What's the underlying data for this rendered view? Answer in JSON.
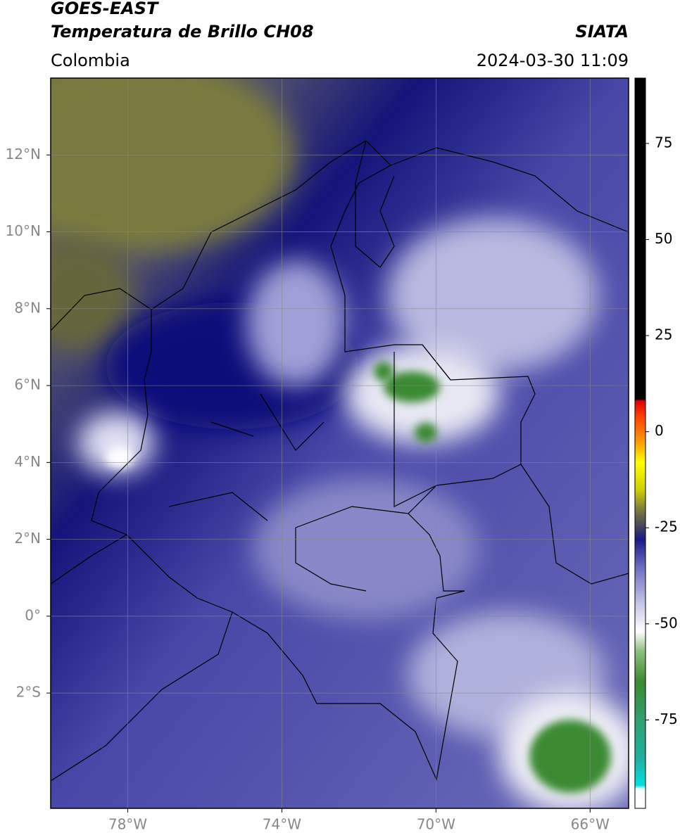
{
  "header": {
    "satellite": "GOES-EAST",
    "product": "Temperatura de Brillo CH08",
    "source": "SIATA",
    "region": "Colombia",
    "datetime": "2024-03-30 11:09"
  },
  "map": {
    "xlim": [
      -80,
      -65
    ],
    "ylim": [
      -5,
      14
    ],
    "grid": true,
    "xticks": [
      {
        "value": -78,
        "label": "78°W"
      },
      {
        "value": -74,
        "label": "74°W"
      },
      {
        "value": -70,
        "label": "70°W"
      },
      {
        "value": -66,
        "label": "66°W"
      }
    ],
    "yticks": [
      {
        "value": 12,
        "label": "12°N"
      },
      {
        "value": 10,
        "label": "10°N"
      },
      {
        "value": 8,
        "label": "8°N"
      },
      {
        "value": 6,
        "label": "6°N"
      },
      {
        "value": 4,
        "label": "4°N"
      },
      {
        "value": 2,
        "label": "2°N"
      },
      {
        "value": 0,
        "label": "0°"
      },
      {
        "value": -2,
        "label": "2°S"
      }
    ]
  },
  "colorbar": {
    "clim": [
      -98,
      92
    ],
    "ticks": [
      75,
      50,
      25,
      0,
      -25,
      -50,
      -75
    ],
    "colormap": [
      {
        "value": -98,
        "color": "#ffffff"
      },
      {
        "value": -93,
        "color": "#ffffff"
      },
      {
        "value": -92,
        "color": "#00e0e0"
      },
      {
        "value": -85,
        "color": "#20b0a0"
      },
      {
        "value": -75,
        "color": "#30a070"
      },
      {
        "value": -65,
        "color": "#3a8a30"
      },
      {
        "value": -57,
        "color": "#90c080"
      },
      {
        "value": -52,
        "color": "#ffffff"
      },
      {
        "value": -45,
        "color": "#c8c8e8"
      },
      {
        "value": -35,
        "color": "#6a6ac0"
      },
      {
        "value": -28,
        "color": "#1a1a8a"
      },
      {
        "value": -25,
        "color": "#404060"
      },
      {
        "value": -20,
        "color": "#808040"
      },
      {
        "value": -15,
        "color": "#d0d000"
      },
      {
        "value": -8,
        "color": "#ffff00"
      },
      {
        "value": -3,
        "color": "#ffa000"
      },
      {
        "value": 4,
        "color": "#ff4000"
      },
      {
        "value": 8,
        "color": "#e00000"
      },
      {
        "value": 8.5,
        "color": "#000000"
      },
      {
        "value": 92,
        "color": "#000000"
      }
    ]
  }
}
